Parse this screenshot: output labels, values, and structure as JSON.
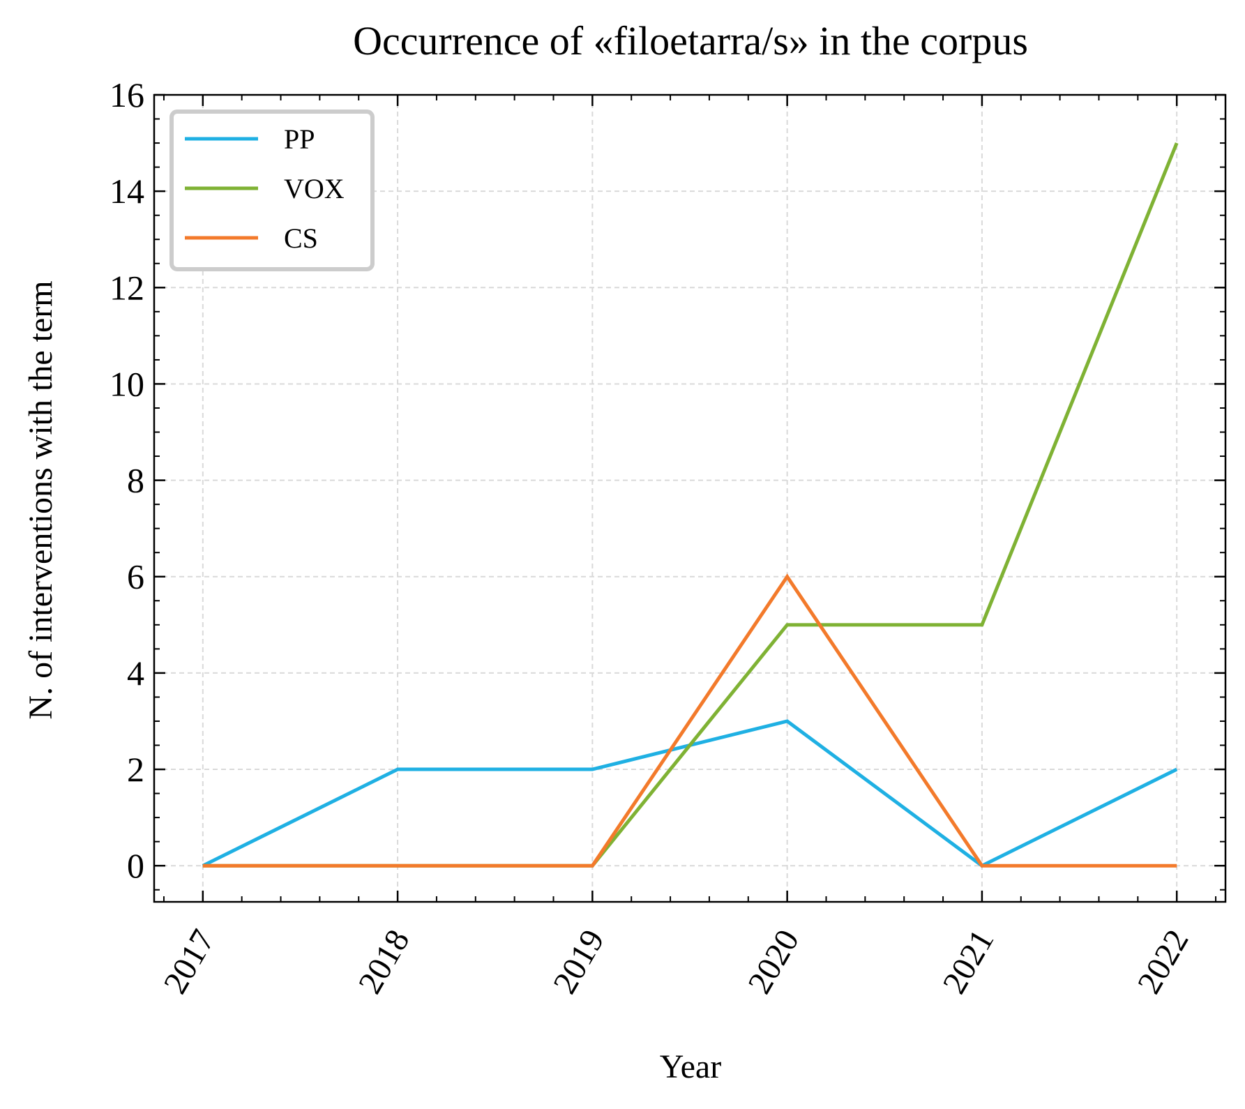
{
  "chart_data": {
    "type": "line",
    "title": "Occurrence of «filoetarra/s» in the corpus",
    "xlabel": "Year",
    "ylabel": "N. of interventions with the term",
    "x": [
      "2017",
      "2018",
      "2019",
      "2020",
      "2021",
      "2022"
    ],
    "xlim": [
      2016.75,
      2022.25
    ],
    "ylim": [
      -0.75,
      16
    ],
    "yticks": [
      0,
      2,
      4,
      6,
      8,
      10,
      12,
      14,
      16
    ],
    "grid": true,
    "legend_position": "top-left",
    "series": [
      {
        "name": "PP",
        "color": "#1fb0e3",
        "values": [
          0,
          2,
          2,
          3,
          0,
          2
        ]
      },
      {
        "name": "VOX",
        "color": "#7fb234",
        "values": [
          0,
          0,
          0,
          5,
          5,
          15
        ]
      },
      {
        "name": "CS",
        "color": "#f37a2b",
        "values": [
          0,
          0,
          0,
          6,
          0,
          0
        ]
      }
    ]
  }
}
